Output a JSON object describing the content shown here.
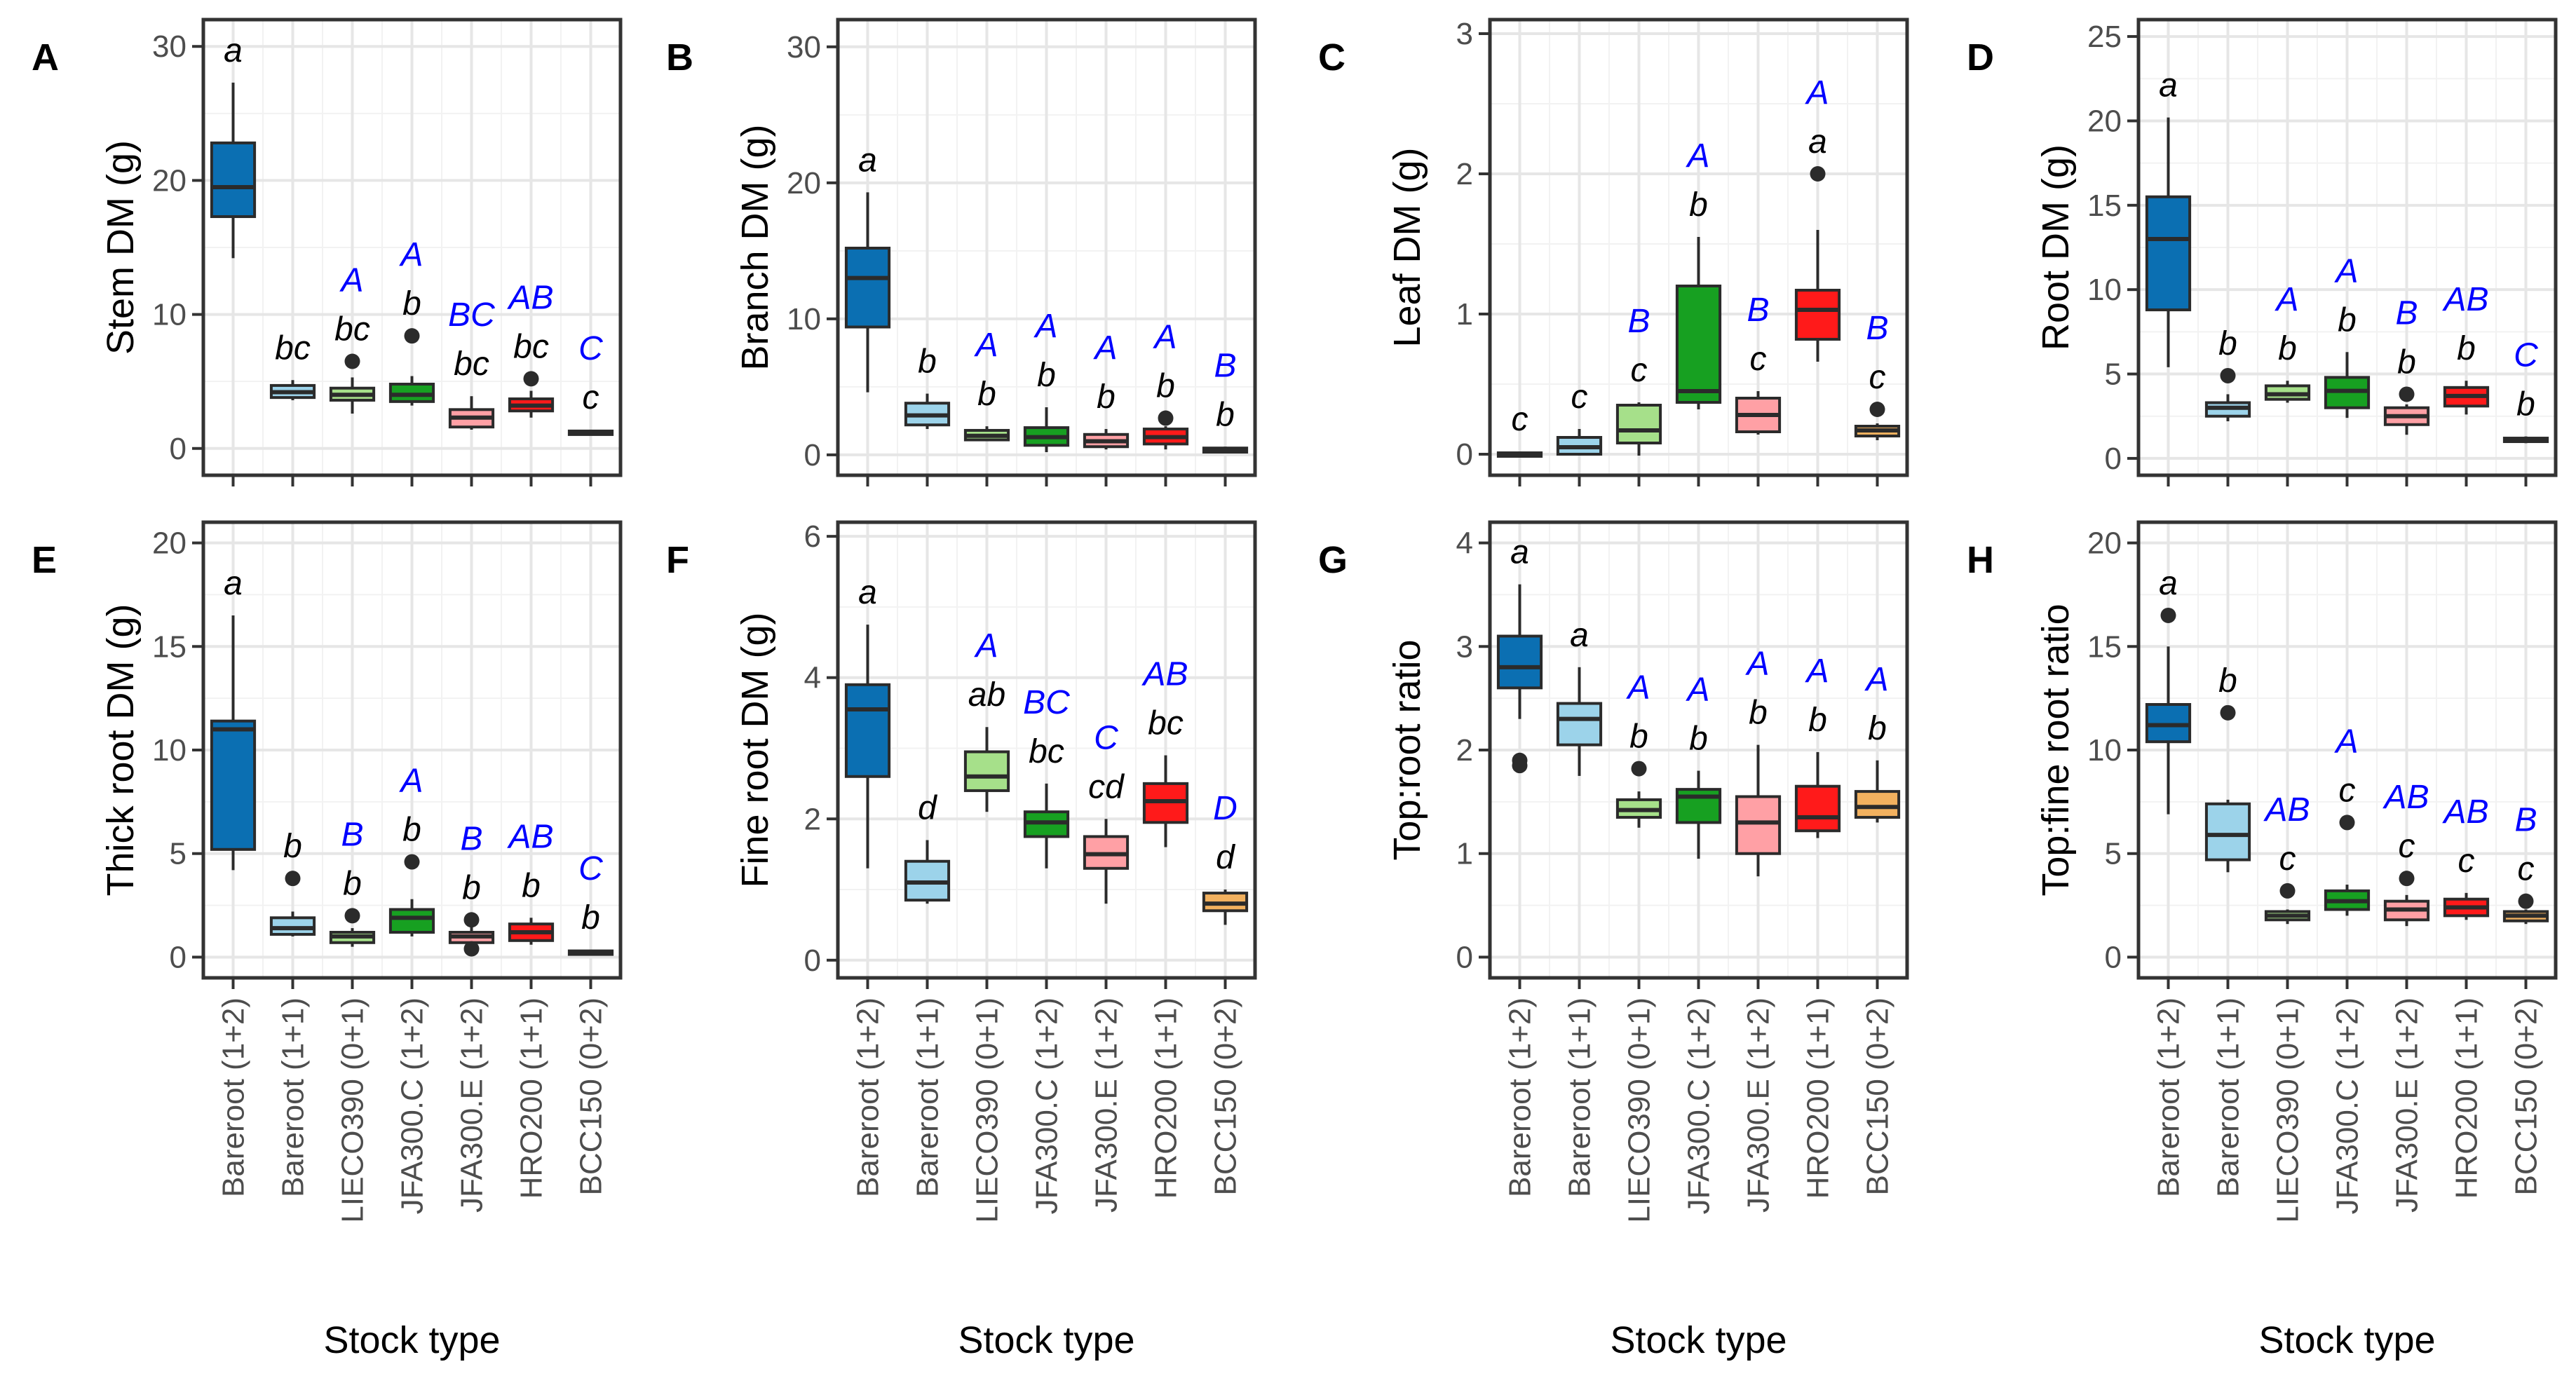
{
  "figure": {
    "xlabel": "Stock type",
    "categories": [
      "Bareroot (1+2)",
      "Bareroot (1+1)",
      "LIECO390 (0+1)",
      "JFA300.C (1+2)",
      "JFA300.E (1+2)",
      "HRO200 (1+1)",
      "BCC150 (0+2)"
    ],
    "fill_colors": [
      "#0b6fb2",
      "#9cd3ea",
      "#a6e08a",
      "#17a021",
      "#ffa0a5",
      "#ff1a1a",
      "#f2b15f"
    ]
  },
  "chart_data": [
    {
      "type": "box",
      "panel": "A",
      "ylabel": "Stem DM (g)",
      "ylim": [
        -2,
        32
      ],
      "yticks": [
        0,
        10,
        20,
        30
      ],
      "boxes": [
        {
          "lo": 14.2,
          "q1": 17.3,
          "med": 19.5,
          "q3": 22.8,
          "hi": 27.3,
          "out": []
        },
        {
          "lo": 3.6,
          "q1": 3.8,
          "med": 4.2,
          "q3": 4.7,
          "hi": 5.1,
          "out": []
        },
        {
          "lo": 2.6,
          "q1": 3.6,
          "med": 4.0,
          "q3": 4.5,
          "hi": 5.3,
          "out": [
            6.5
          ]
        },
        {
          "lo": 3.2,
          "q1": 3.5,
          "med": 4.0,
          "q3": 4.8,
          "hi": 5.4,
          "out": [
            8.4
          ]
        },
        {
          "lo": 1.4,
          "q1": 1.6,
          "med": 2.3,
          "q3": 2.9,
          "hi": 3.9,
          "out": []
        },
        {
          "lo": 2.3,
          "q1": 2.8,
          "med": 3.2,
          "q3": 3.7,
          "hi": 4.3,
          "out": [
            5.2
          ]
        },
        {
          "lo": 1.0,
          "q1": 1.1,
          "med": 1.2,
          "q3": 1.3,
          "hi": 1.4,
          "out": []
        }
      ],
      "sig_lower": [
        "a",
        "bc",
        "bc",
        "b",
        "bc",
        "bc",
        "c"
      ],
      "sig_upper": [
        "",
        "",
        "A",
        "A",
        "BC",
        "AB",
        "C"
      ]
    },
    {
      "type": "box",
      "panel": "B",
      "ylabel": "Branch DM (g)",
      "ylim": [
        -1.5,
        32
      ],
      "yticks": [
        0,
        10,
        20,
        30
      ],
      "boxes": [
        {
          "lo": 4.6,
          "q1": 9.4,
          "med": 13.0,
          "q3": 15.2,
          "hi": 19.3,
          "out": []
        },
        {
          "lo": 1.9,
          "q1": 2.2,
          "med": 2.9,
          "q3": 3.8,
          "hi": 4.5,
          "out": []
        },
        {
          "lo": 1.0,
          "q1": 1.1,
          "med": 1.4,
          "q3": 1.8,
          "hi": 2.1,
          "out": []
        },
        {
          "lo": 0.2,
          "q1": 0.7,
          "med": 1.3,
          "q3": 2.0,
          "hi": 3.5,
          "out": []
        },
        {
          "lo": 0.4,
          "q1": 0.6,
          "med": 1.0,
          "q3": 1.5,
          "hi": 1.9,
          "out": []
        },
        {
          "lo": 0.4,
          "q1": 0.8,
          "med": 1.3,
          "q3": 1.9,
          "hi": 2.1,
          "out": [
            2.7
          ]
        },
        {
          "lo": 0.1,
          "q1": 0.2,
          "med": 0.35,
          "q3": 0.5,
          "hi": 0.6,
          "out": []
        }
      ],
      "sig_lower": [
        "a",
        "b",
        "b",
        "b",
        "b",
        "b",
        "b"
      ],
      "sig_upper": [
        "",
        "",
        "A",
        "A",
        "A",
        "A",
        "B"
      ]
    },
    {
      "type": "box",
      "panel": "C",
      "ylabel": "Leaf DM (g)",
      "ylim": [
        -0.15,
        3.1
      ],
      "yticks": [
        0,
        1,
        2,
        3
      ],
      "boxes": [
        {
          "lo": -0.02,
          "q1": -0.01,
          "med": 0.0,
          "q3": 0.01,
          "hi": 0.02,
          "out": []
        },
        {
          "lo": -0.01,
          "q1": 0.0,
          "med": 0.05,
          "q3": 0.12,
          "hi": 0.18,
          "out": []
        },
        {
          "lo": -0.01,
          "q1": 0.08,
          "med": 0.17,
          "q3": 0.35,
          "hi": 0.37,
          "out": []
        },
        {
          "lo": 0.32,
          "q1": 0.37,
          "med": 0.45,
          "q3": 1.2,
          "hi": 1.55,
          "out": []
        },
        {
          "lo": 0.14,
          "q1": 0.16,
          "med": 0.28,
          "q3": 0.4,
          "hi": 0.45,
          "out": []
        },
        {
          "lo": 0.66,
          "q1": 0.82,
          "med": 1.03,
          "q3": 1.17,
          "hi": 1.6,
          "out": [
            2.0
          ]
        },
        {
          "lo": 0.1,
          "q1": 0.13,
          "med": 0.17,
          "q3": 0.2,
          "hi": 0.22,
          "out": [
            0.32
          ]
        }
      ],
      "sig_lower": [
        "c",
        "c",
        "c",
        "b",
        "c",
        "a",
        "c"
      ],
      "sig_upper": [
        "",
        "",
        "B",
        "A",
        "B",
        "A",
        "B"
      ]
    },
    {
      "type": "box",
      "panel": "D",
      "ylabel": "Root DM (g)",
      "ylim": [
        -1,
        26
      ],
      "yticks": [
        0,
        5,
        10,
        15,
        20,
        25
      ],
      "boxes": [
        {
          "lo": 5.4,
          "q1": 8.8,
          "med": 13.0,
          "q3": 15.5,
          "hi": 20.2,
          "out": []
        },
        {
          "lo": 2.2,
          "q1": 2.5,
          "med": 3.0,
          "q3": 3.3,
          "hi": 3.8,
          "out": [
            4.9
          ]
        },
        {
          "lo": 3.3,
          "q1": 3.5,
          "med": 3.8,
          "q3": 4.3,
          "hi": 4.6,
          "out": []
        },
        {
          "lo": 2.4,
          "q1": 3.0,
          "med": 4.0,
          "q3": 4.8,
          "hi": 6.3,
          "out": []
        },
        {
          "lo": 1.4,
          "q1": 2.0,
          "med": 2.5,
          "q3": 3.0,
          "hi": 3.2,
          "out": [
            3.8
          ]
        },
        {
          "lo": 2.6,
          "q1": 3.1,
          "med": 3.7,
          "q3": 4.2,
          "hi": 4.6,
          "out": []
        },
        {
          "lo": 0.9,
          "q1": 1.0,
          "med": 1.1,
          "q3": 1.2,
          "hi": 1.3,
          "out": []
        }
      ],
      "sig_lower": [
        "a",
        "b",
        "b",
        "b",
        "b",
        "b",
        "b"
      ],
      "sig_upper": [
        "",
        "",
        "A",
        "A",
        "B",
        "AB",
        "C"
      ]
    },
    {
      "type": "box",
      "panel": "E",
      "ylabel": "Thick root DM (g)",
      "ylim": [
        -1,
        21
      ],
      "yticks": [
        0,
        5,
        10,
        15,
        20
      ],
      "boxes": [
        {
          "lo": 4.2,
          "q1": 5.2,
          "med": 11.0,
          "q3": 11.4,
          "hi": 16.5,
          "out": []
        },
        {
          "lo": 1.0,
          "q1": 1.1,
          "med": 1.4,
          "q3": 1.9,
          "hi": 2.2,
          "out": [
            3.8
          ]
        },
        {
          "lo": 0.5,
          "q1": 0.7,
          "med": 1.0,
          "q3": 1.2,
          "hi": 1.4,
          "out": [
            2.0
          ]
        },
        {
          "lo": 1.0,
          "q1": 1.2,
          "med": 1.9,
          "q3": 2.3,
          "hi": 2.8,
          "out": [
            4.6
          ]
        },
        {
          "lo": 0.4,
          "q1": 0.7,
          "med": 1.0,
          "q3": 1.2,
          "hi": 1.5,
          "out": [
            1.8,
            0.4
          ]
        },
        {
          "lo": 0.6,
          "q1": 0.8,
          "med": 1.2,
          "q3": 1.6,
          "hi": 1.9,
          "out": []
        },
        {
          "lo": 0.15,
          "q1": 0.2,
          "med": 0.25,
          "q3": 0.3,
          "hi": 0.35,
          "out": []
        }
      ],
      "sig_lower": [
        "a",
        "b",
        "b",
        "b",
        "b",
        "b",
        "b"
      ],
      "sig_upper": [
        "",
        "",
        "B",
        "A",
        "B",
        "AB",
        "C"
      ]
    },
    {
      "type": "box",
      "panel": "F",
      "ylabel": "Fine root DM (g)",
      "ylim": [
        -0.25,
        6.2
      ],
      "yticks": [
        0,
        2,
        4,
        6
      ],
      "boxes": [
        {
          "lo": 1.3,
          "q1": 2.6,
          "med": 3.55,
          "q3": 3.9,
          "hi": 4.75,
          "out": []
        },
        {
          "lo": 0.8,
          "q1": 0.85,
          "med": 1.1,
          "q3": 1.4,
          "hi": 1.7,
          "out": []
        },
        {
          "lo": 2.1,
          "q1": 2.4,
          "med": 2.6,
          "q3": 2.95,
          "hi": 3.3,
          "out": []
        },
        {
          "lo": 1.3,
          "q1": 1.75,
          "med": 1.95,
          "q3": 2.1,
          "hi": 2.5,
          "out": []
        },
        {
          "lo": 0.8,
          "q1": 1.3,
          "med": 1.5,
          "q3": 1.75,
          "hi": 2.0,
          "out": []
        },
        {
          "lo": 1.6,
          "q1": 1.95,
          "med": 2.25,
          "q3": 2.5,
          "hi": 2.9,
          "out": []
        },
        {
          "lo": 0.5,
          "q1": 0.7,
          "med": 0.8,
          "q3": 0.95,
          "hi": 1.0,
          "out": []
        }
      ],
      "sig_lower": [
        "a",
        "d",
        "ab",
        "bc",
        "cd",
        "bc",
        "d"
      ],
      "sig_upper": [
        "",
        "",
        "A",
        "BC",
        "C",
        "AB",
        "D"
      ]
    },
    {
      "type": "box",
      "panel": "G",
      "ylabel": "Top:root ratio",
      "ylim": [
        -0.2,
        4.2
      ],
      "yticks": [
        0,
        1,
        2,
        3,
        4
      ],
      "boxes": [
        {
          "lo": 2.3,
          "q1": 2.6,
          "med": 2.8,
          "q3": 3.1,
          "hi": 3.6,
          "out": [
            1.9,
            1.85
          ]
        },
        {
          "lo": 1.75,
          "q1": 2.05,
          "med": 2.3,
          "q3": 2.45,
          "hi": 2.8,
          "out": []
        },
        {
          "lo": 1.25,
          "q1": 1.35,
          "med": 1.42,
          "q3": 1.52,
          "hi": 1.6,
          "out": [
            1.82
          ]
        },
        {
          "lo": 0.95,
          "q1": 1.3,
          "med": 1.55,
          "q3": 1.62,
          "hi": 1.8,
          "out": []
        },
        {
          "lo": 0.78,
          "q1": 1.0,
          "med": 1.3,
          "q3": 1.55,
          "hi": 2.05,
          "out": []
        },
        {
          "lo": 1.15,
          "q1": 1.22,
          "med": 1.35,
          "q3": 1.65,
          "hi": 1.98,
          "out": []
        },
        {
          "lo": 1.3,
          "q1": 1.35,
          "med": 1.45,
          "q3": 1.6,
          "hi": 1.9,
          "out": []
        }
      ],
      "sig_lower": [
        "a",
        "a",
        "b",
        "b",
        "b",
        "b",
        "b"
      ],
      "sig_upper": [
        "",
        "",
        "A",
        "A",
        "A",
        "A",
        "A"
      ]
    },
    {
      "type": "box",
      "panel": "H",
      "ylabel": "Top:fine root ratio",
      "ylim": [
        -1,
        21
      ],
      "yticks": [
        0,
        5,
        10,
        15,
        20
      ],
      "boxes": [
        {
          "lo": 6.9,
          "q1": 10.4,
          "med": 11.2,
          "q3": 12.2,
          "hi": 15.0,
          "out": [
            16.5
          ]
        },
        {
          "lo": 4.1,
          "q1": 4.7,
          "med": 5.9,
          "q3": 7.4,
          "hi": 7.6,
          "out": [
            11.8
          ]
        },
        {
          "lo": 1.6,
          "q1": 1.8,
          "med": 2.0,
          "q3": 2.2,
          "hi": 2.3,
          "out": [
            3.2
          ]
        },
        {
          "lo": 2.0,
          "q1": 2.3,
          "med": 2.7,
          "q3": 3.2,
          "hi": 3.5,
          "out": [
            6.5
          ]
        },
        {
          "lo": 1.5,
          "q1": 1.8,
          "med": 2.3,
          "q3": 2.7,
          "hi": 3.0,
          "out": [
            3.8
          ]
        },
        {
          "lo": 1.8,
          "q1": 2.0,
          "med": 2.4,
          "q3": 2.8,
          "hi": 3.1,
          "out": []
        },
        {
          "lo": 1.6,
          "q1": 1.75,
          "med": 2.0,
          "q3": 2.2,
          "hi": 2.3,
          "out": [
            2.7
          ]
        }
      ],
      "sig_lower": [
        "a",
        "b",
        "c",
        "c",
        "c",
        "c",
        "c"
      ],
      "sig_upper": [
        "",
        "",
        "AB",
        "A",
        "AB",
        "AB",
        "B"
      ]
    }
  ]
}
